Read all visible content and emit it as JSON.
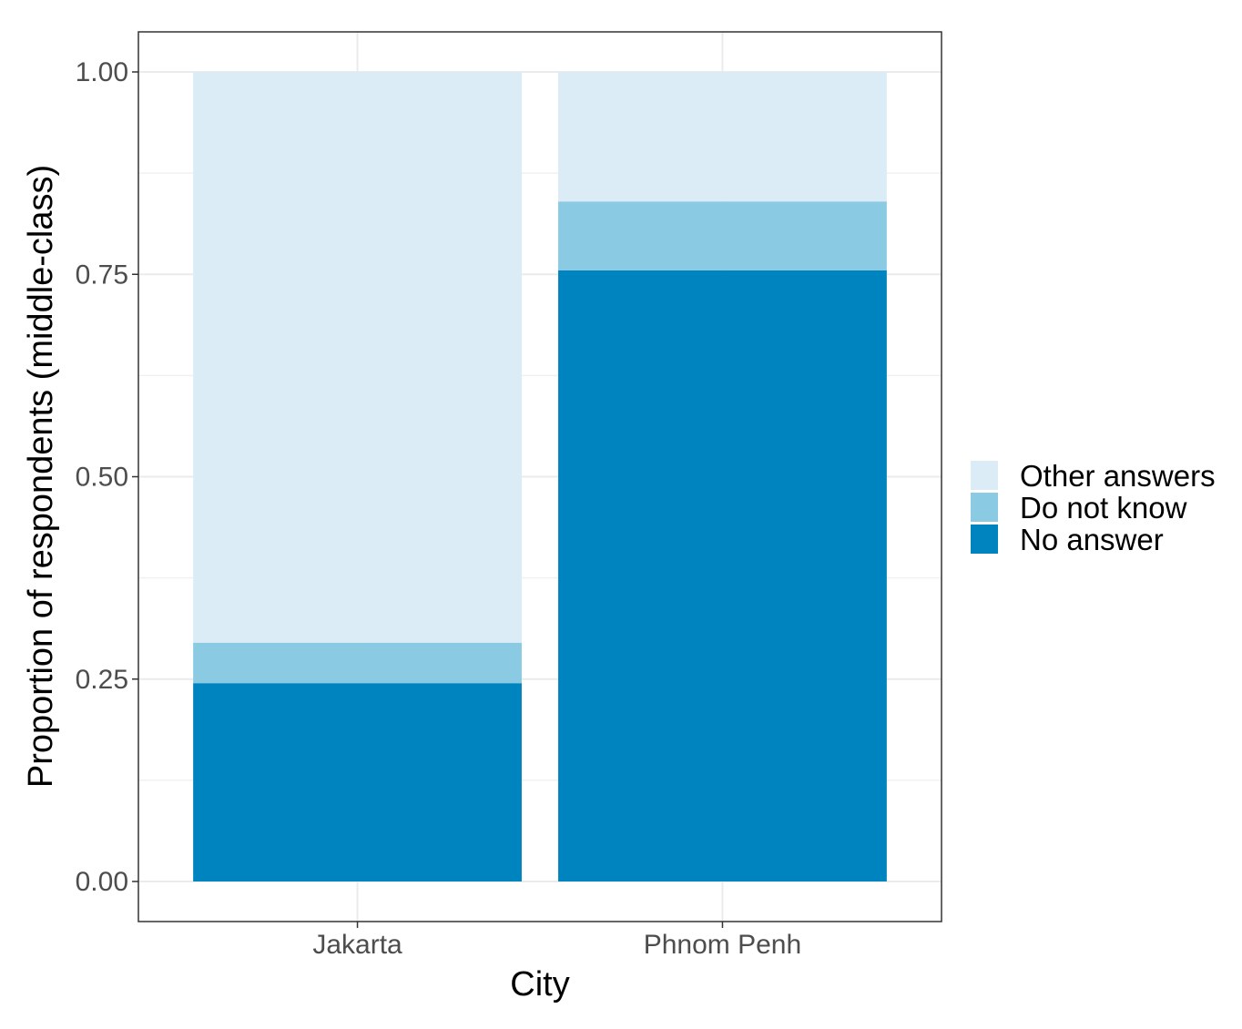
{
  "chart_data": {
    "type": "bar",
    "stacked": true,
    "title": "",
    "xlabel": "City",
    "ylabel": "Proportion of respondents (middle-class)",
    "categories": [
      "Jakarta",
      "Phnom Penh"
    ],
    "series": [
      {
        "name": "No answer",
        "values": [
          0.245,
          0.755
        ],
        "color": "#0084c0"
      },
      {
        "name": "Do not know",
        "values": [
          0.05,
          0.085
        ],
        "color": "#8bcae3"
      },
      {
        "name": "Other answers",
        "values": [
          0.705,
          0.16
        ],
        "color": "#dbecf7"
      }
    ],
    "legend_order": [
      "Other answers",
      "Do not know",
      "No answer"
    ],
    "yticks": [
      "0.00",
      "0.25",
      "0.50",
      "0.75",
      "1.00"
    ],
    "ylim": [
      -0.05,
      1.05
    ],
    "grid": true,
    "legend_position": "right"
  }
}
